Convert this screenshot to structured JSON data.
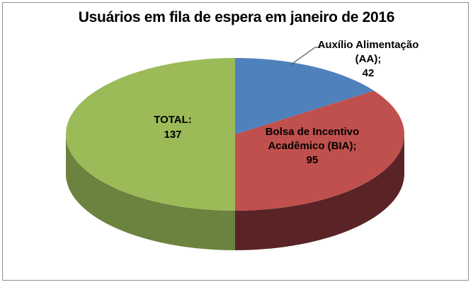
{
  "window": {
    "background_color": "#FFFFFF",
    "frame_border_color": "#8F8F8F"
  },
  "chart_data": {
    "type": "pie",
    "style": "3d",
    "title": "Usuários em fila de espera em janeiro de 2016",
    "title_color": "#000000",
    "label_color": "#000000",
    "leader_line_color": "#595959",
    "legend": "none",
    "start_angle_deg": 0,
    "direction": "clockwise",
    "slices": [
      {
        "name": "Auxílio Alimentação (AA)",
        "value": 42,
        "color": "#4F81BD",
        "wall_color": "#385D8A",
        "label_position": "outside-callout",
        "label_lines": [
          "Auxílio Alimentação",
          "(AA);",
          "42"
        ]
      },
      {
        "name": "Bolsa de Incentivo Acadêmico (BIA)",
        "value": 95,
        "color": "#C0504D",
        "wall_color": "#5A2427",
        "label_position": "inside",
        "label_lines": [
          "Bolsa de Incentivo",
          "Acadêmico (BIA);",
          "95"
        ]
      },
      {
        "name": "TOTAL",
        "value": 137,
        "color": "#9BBB59",
        "wall_color": "#6C823F",
        "label_position": "inside",
        "label_lines": [
          "TOTAL:",
          "137"
        ]
      }
    ]
  }
}
